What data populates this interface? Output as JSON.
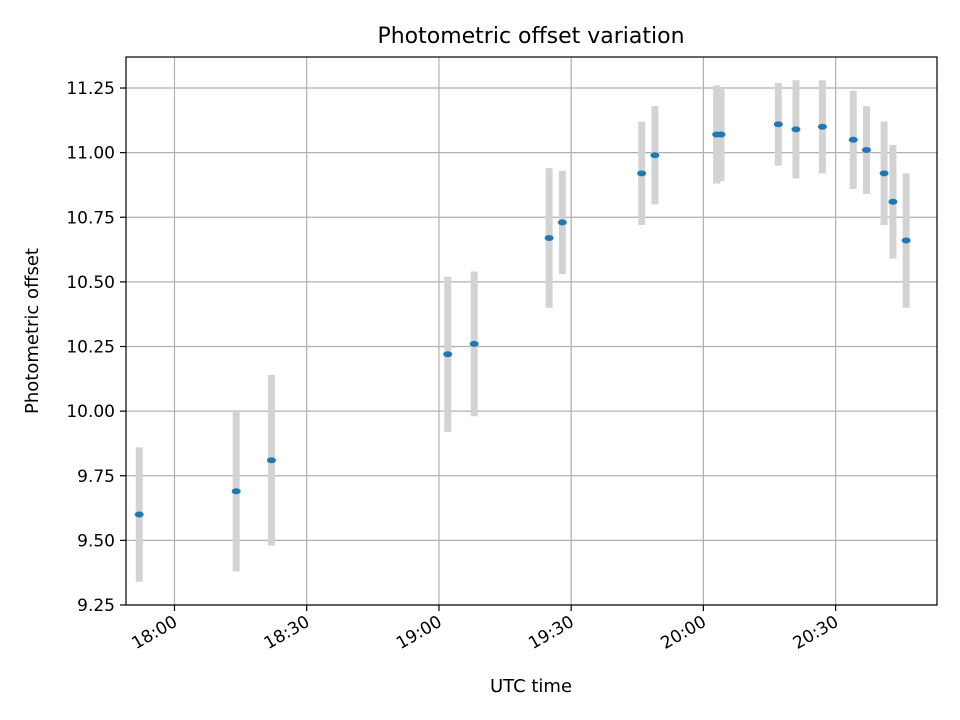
{
  "chart_data": {
    "type": "scatter",
    "title": "Photometric offset variation",
    "xlabel": "UTC time",
    "ylabel": "Photometric offset",
    "xlim": [
      "17:49",
      "20:53"
    ],
    "ylim": [
      9.25,
      11.37
    ],
    "x_ticks": [
      "18:00",
      "18:30",
      "19:00",
      "19:30",
      "20:00",
      "20:30"
    ],
    "y_ticks": [
      "9.25",
      "9.50",
      "9.75",
      "10.00",
      "10.25",
      "10.50",
      "10.75",
      "11.00",
      "11.25"
    ],
    "grid": true,
    "legend": "none",
    "series": [
      {
        "points": [
          {
            "x": "17:52",
            "y": 9.6,
            "err": 0.26
          },
          {
            "x": "18:14",
            "y": 9.69,
            "err": 0.31
          },
          {
            "x": "18:22",
            "y": 9.81,
            "err": 0.33
          },
          {
            "x": "19:02",
            "y": 10.22,
            "err": 0.3
          },
          {
            "x": "19:08",
            "y": 10.26,
            "err": 0.28
          },
          {
            "x": "19:25",
            "y": 10.67,
            "err": 0.27
          },
          {
            "x": "19:28",
            "y": 10.73,
            "err": 0.2
          },
          {
            "x": "19:46",
            "y": 10.92,
            "err": 0.2
          },
          {
            "x": "19:49",
            "y": 10.99,
            "err": 0.19
          },
          {
            "x": "20:03",
            "y": 11.07,
            "err": 0.19
          },
          {
            "x": "20:04",
            "y": 11.07,
            "err": 0.18
          },
          {
            "x": "20:17",
            "y": 11.11,
            "err": 0.16
          },
          {
            "x": "20:21",
            "y": 11.09,
            "err": 0.19
          },
          {
            "x": "20:27",
            "y": 11.1,
            "err": 0.18
          },
          {
            "x": "20:34",
            "y": 11.05,
            "err": 0.19
          },
          {
            "x": "20:37",
            "y": 11.01,
            "err": 0.17
          },
          {
            "x": "20:41",
            "y": 10.92,
            "err": 0.2
          },
          {
            "x": "20:43",
            "y": 10.81,
            "err": 0.22
          },
          {
            "x": "20:46",
            "y": 10.66,
            "err": 0.26
          }
        ]
      }
    ],
    "colors": {
      "marker": "#1f77b4",
      "errorbar": "#d3d3d3",
      "grid": "#b0b0b0",
      "axes": "#000000"
    }
  }
}
